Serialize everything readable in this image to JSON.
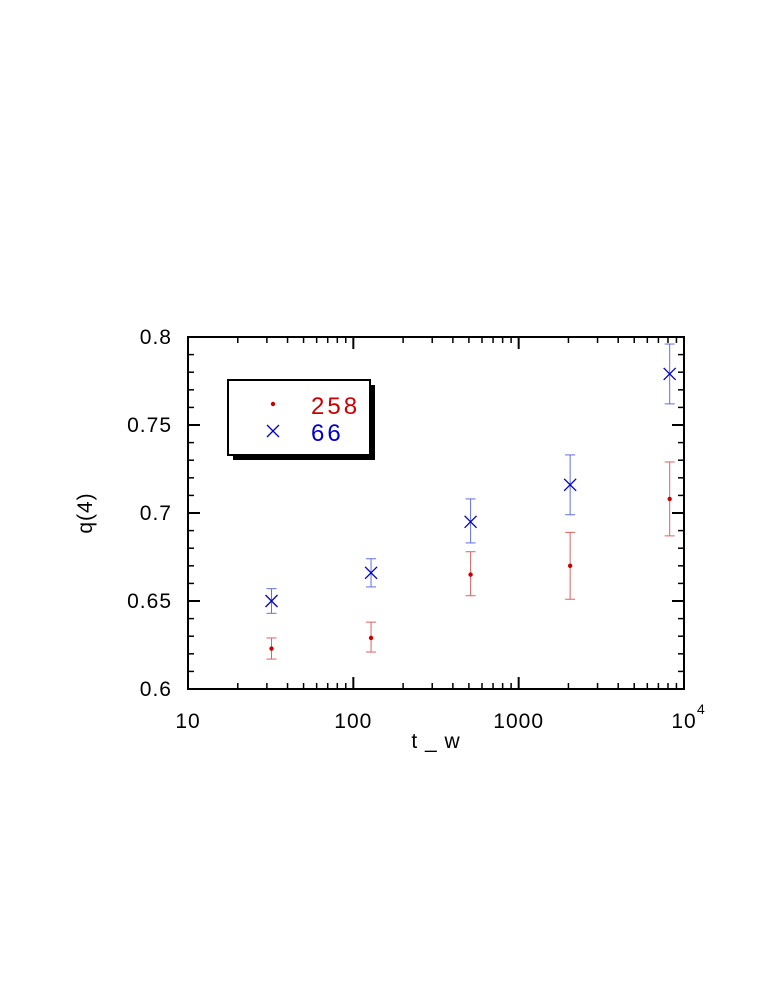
{
  "chart_data": {
    "type": "scatter",
    "title": "",
    "xlabel": "t _ w",
    "ylabel": "q(4)",
    "xscale": "log",
    "xlim": [
      10,
      10000
    ],
    "ylim": [
      0.6,
      0.8
    ],
    "x_tick_labels": [
      "10",
      "100",
      "1000",
      "10"
    ],
    "x_tick_exponent": "4",
    "y_tick_labels": [
      "0.6",
      "0.65",
      "0.7",
      "0.75",
      "0.8"
    ],
    "y_ticks": [
      0.6,
      0.65,
      0.7,
      0.75,
      0.8
    ],
    "grid": false,
    "legend_position": "top-left",
    "series": [
      {
        "name": "258",
        "marker": "dot",
        "color": "#cc0000",
        "x": [
          32,
          128,
          512,
          2048,
          8192
        ],
        "y": [
          0.623,
          0.629,
          0.665,
          0.67,
          0.708
        ],
        "yerr_low": [
          0.006,
          0.008,
          0.012,
          0.019,
          0.021
        ],
        "yerr_high": [
          0.006,
          0.009,
          0.013,
          0.019,
          0.021
        ]
      },
      {
        "name": "66",
        "marker": "x",
        "color": "#0000cc",
        "x": [
          32,
          128,
          512,
          2048,
          8192
        ],
        "y": [
          0.65,
          0.666,
          0.695,
          0.716,
          0.779
        ],
        "yerr_low": [
          0.007,
          0.008,
          0.012,
          0.017,
          0.017
        ],
        "yerr_high": [
          0.007,
          0.008,
          0.013,
          0.017,
          0.017
        ]
      }
    ]
  }
}
